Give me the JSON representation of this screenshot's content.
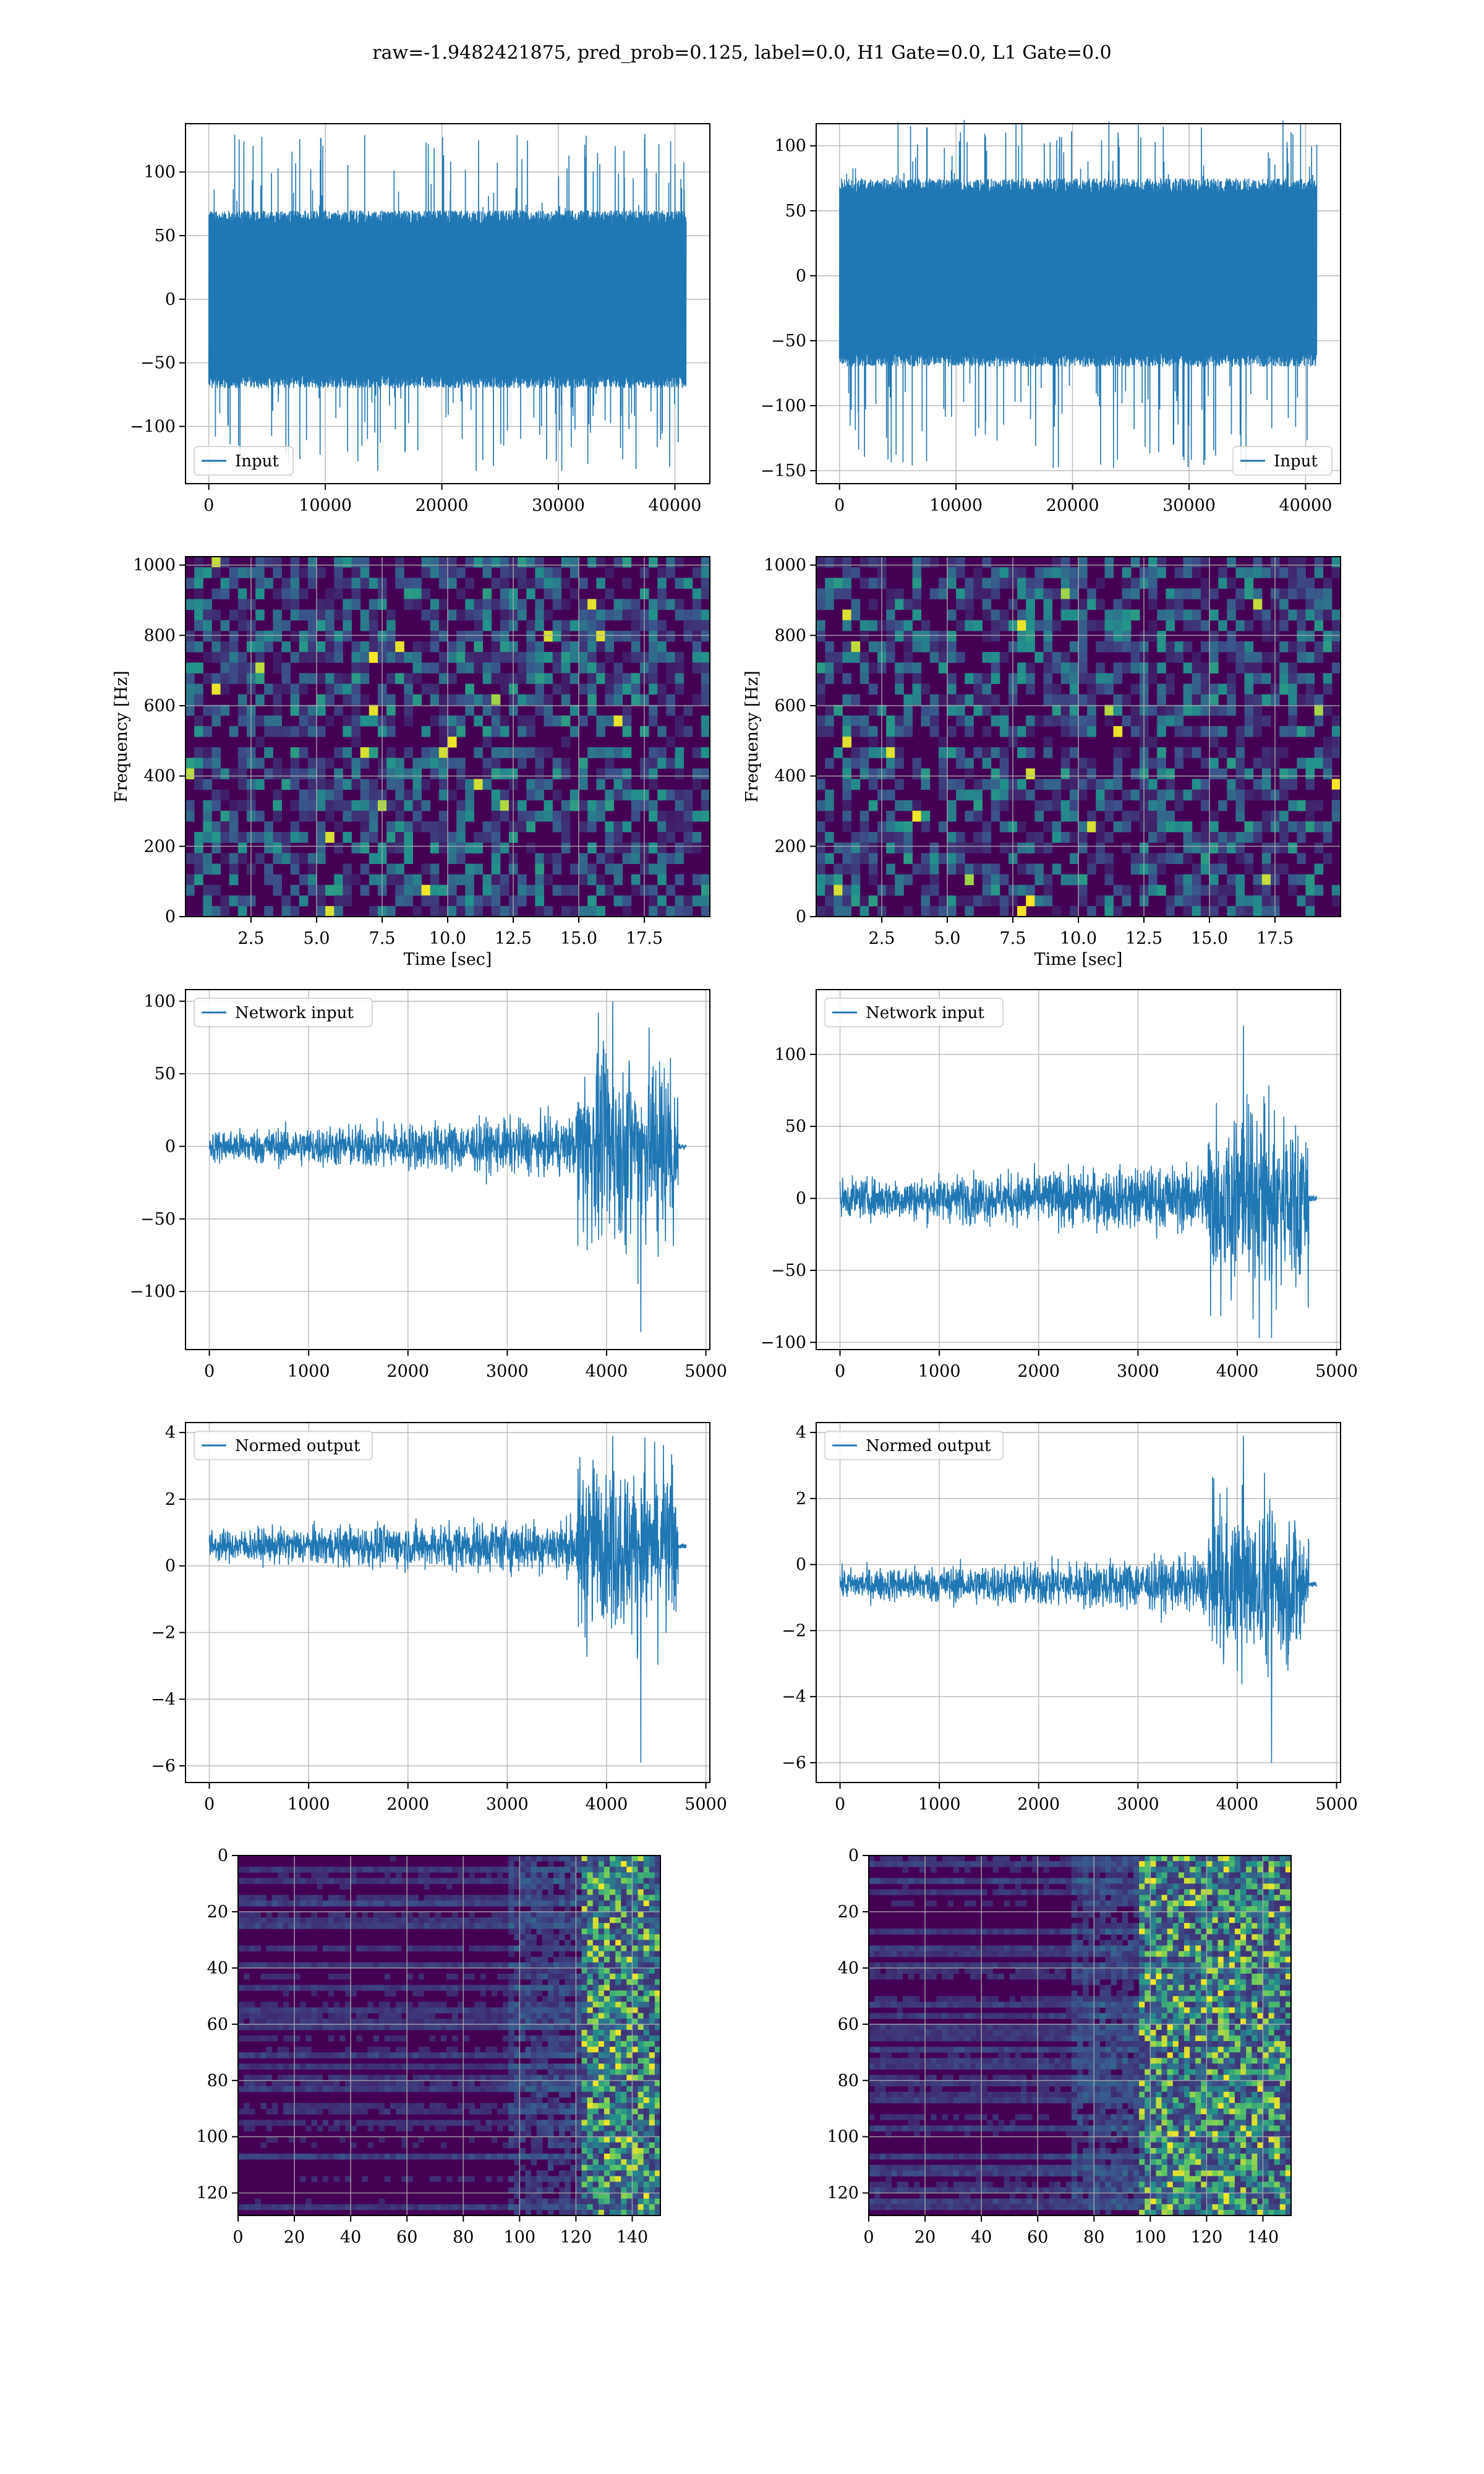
{
  "figure": {
    "title": "raw=-1.9482421875, pred_prob=0.125, label=0.0, H1 Gate=0.0, L1 Gate=0.0"
  },
  "colors": {
    "line": "#1f77b4",
    "grid": "#b0b0b0",
    "viridis_dark": "#440154",
    "viridis_mid": "#21918c",
    "viridis_light": "#5ec962",
    "viridis_bright": "#fde725"
  },
  "chart_data": [
    {
      "id": "input-h1",
      "type": "line",
      "column": 0,
      "row": 0,
      "title": "",
      "xlabel": "",
      "ylabel": "",
      "xlim": [
        -2000,
        43000
      ],
      "ylim": [
        -145,
        138
      ],
      "xticks": [
        0,
        10000,
        20000,
        30000,
        40000
      ],
      "yticks": [
        -100,
        -50,
        0,
        50,
        100
      ],
      "grid": true,
      "legend": "lower left",
      "series": [
        {
          "name": "Input",
          "x_range": [
            0,
            40960
          ],
          "envelope": [
            -70,
            70
          ],
          "spike_range": [
            -135,
            130
          ]
        }
      ]
    },
    {
      "id": "input-l1",
      "type": "line",
      "column": 1,
      "row": 0,
      "title": "",
      "xlabel": "",
      "ylabel": "",
      "xlim": [
        -2000,
        43000
      ],
      "ylim": [
        -160,
        117
      ],
      "xticks": [
        0,
        10000,
        20000,
        30000,
        40000
      ],
      "yticks": [
        -150,
        -100,
        -50,
        0,
        50,
        100
      ],
      "grid": true,
      "legend": "lower right",
      "series": [
        {
          "name": "Input",
          "x_range": [
            0,
            40960
          ],
          "envelope": [
            -70,
            75
          ],
          "spike_range": [
            -148,
            120
          ]
        }
      ]
    },
    {
      "id": "spec-h1",
      "type": "heatmap",
      "column": 0,
      "row": 1,
      "title": "",
      "xlabel": "Time [sec]",
      "ylabel": "Frequency [Hz]",
      "xlim": [
        0,
        20
      ],
      "ylim": [
        0,
        1024
      ],
      "xticks": [
        2.5,
        5.0,
        7.5,
        10.0,
        12.5,
        15.0,
        17.5
      ],
      "xtick_labels": [
        "2.5",
        "5.0",
        "7.5",
        "10.0",
        "12.5",
        "15.0",
        "17.5"
      ],
      "yticks": [
        0,
        200,
        400,
        600,
        800,
        1000
      ],
      "grid": true,
      "colormap": "viridis",
      "dark_band_hz": 500
    },
    {
      "id": "spec-l1",
      "type": "heatmap",
      "column": 1,
      "row": 1,
      "title": "",
      "xlabel": "Time [sec]",
      "ylabel": "Frequency [Hz]",
      "xlim": [
        0,
        20
      ],
      "ylim": [
        0,
        1024
      ],
      "xticks": [
        2.5,
        5.0,
        7.5,
        10.0,
        12.5,
        15.0,
        17.5
      ],
      "xtick_labels": [
        "2.5",
        "5.0",
        "7.5",
        "10.0",
        "12.5",
        "15.0",
        "17.5"
      ],
      "yticks": [
        0,
        200,
        400,
        600,
        800,
        1000
      ],
      "grid": true,
      "colormap": "viridis",
      "dark_band_hz": 500
    },
    {
      "id": "netin-h1",
      "type": "line",
      "column": 0,
      "row": 2,
      "title": "",
      "xlabel": "",
      "ylabel": "",
      "xlim": [
        -240,
        5040
      ],
      "ylim": [
        -140,
        108
      ],
      "xticks": [
        0,
        1000,
        2000,
        3000,
        4000,
        5000
      ],
      "yticks": [
        -100,
        -50,
        0,
        50,
        100
      ],
      "grid": true,
      "legend": "upper left",
      "series": [
        {
          "name": "Network input",
          "x_end": 4720,
          "tail_end": 4800,
          "base_amp": 12,
          "burst_start": 3700,
          "burst_amp": 95,
          "min": -128,
          "max": 100
        }
      ]
    },
    {
      "id": "netin-l1",
      "type": "line",
      "column": 1,
      "row": 2,
      "title": "",
      "xlabel": "",
      "ylabel": "",
      "xlim": [
        -240,
        5040
      ],
      "ylim": [
        -105,
        145
      ],
      "xticks": [
        0,
        1000,
        2000,
        3000,
        4000,
        5000
      ],
      "yticks": [
        -100,
        -50,
        0,
        50,
        100
      ],
      "grid": true,
      "legend": "upper left",
      "series": [
        {
          "name": "Network input",
          "x_end": 4720,
          "tail_end": 4800,
          "base_amp": 14,
          "burst_start": 3700,
          "burst_amp": 95,
          "min": -97,
          "max": 120
        }
      ]
    },
    {
      "id": "norm-h1",
      "type": "line",
      "column": 0,
      "row": 3,
      "title": "",
      "xlabel": "",
      "ylabel": "",
      "xlim": [
        -240,
        5040
      ],
      "ylim": [
        -6.5,
        4.3
      ],
      "xticks": [
        0,
        1000,
        2000,
        3000,
        4000,
        5000
      ],
      "yticks": [
        -6,
        -4,
        -2,
        0,
        2,
        4
      ],
      "grid": true,
      "legend": "upper left",
      "series": [
        {
          "name": "Normed output",
          "x_end": 4720,
          "tail_end": 4800,
          "offset": 0.6,
          "base_amp": 0.5,
          "burst_start": 3700,
          "burst_amp": 3.5,
          "min": -5.9,
          "max": 3.9
        }
      ]
    },
    {
      "id": "norm-l1",
      "type": "line",
      "column": 1,
      "row": 3,
      "title": "",
      "xlabel": "",
      "ylabel": "",
      "xlim": [
        -240,
        5040
      ],
      "ylim": [
        -6.6,
        4.3
      ],
      "xticks": [
        0,
        1000,
        2000,
        3000,
        4000,
        5000
      ],
      "yticks": [
        -6,
        -4,
        -2,
        0,
        2,
        4
      ],
      "grid": true,
      "legend": "upper left",
      "series": [
        {
          "name": "Normed output",
          "x_end": 4720,
          "tail_end": 4800,
          "offset": -0.6,
          "base_amp": 0.5,
          "burst_start": 3700,
          "burst_amp": 3.5,
          "min": -6.0,
          "max": 3.9
        }
      ]
    },
    {
      "id": "feat-h1",
      "type": "heatmap",
      "column": 0,
      "row": 4,
      "title": "",
      "xlabel": "",
      "ylabel": "",
      "xlim": [
        0,
        150
      ],
      "ylim": [
        128,
        0
      ],
      "xticks": [
        0,
        20,
        40,
        60,
        80,
        100,
        120,
        140
      ],
      "yticks": [
        0,
        20,
        40,
        60,
        80,
        100,
        120
      ],
      "grid": true,
      "colormap": "viridis",
      "active_from": 120
    },
    {
      "id": "feat-l1",
      "type": "heatmap",
      "column": 1,
      "row": 4,
      "title": "",
      "xlabel": "",
      "ylabel": "",
      "xlim": [
        0,
        150
      ],
      "ylim": [
        128,
        0
      ],
      "xticks": [
        0,
        20,
        40,
        60,
        80,
        100,
        120,
        140
      ],
      "yticks": [
        0,
        20,
        40,
        60,
        80,
        100,
        120
      ],
      "grid": true,
      "colormap": "viridis",
      "active_from": 95
    }
  ]
}
